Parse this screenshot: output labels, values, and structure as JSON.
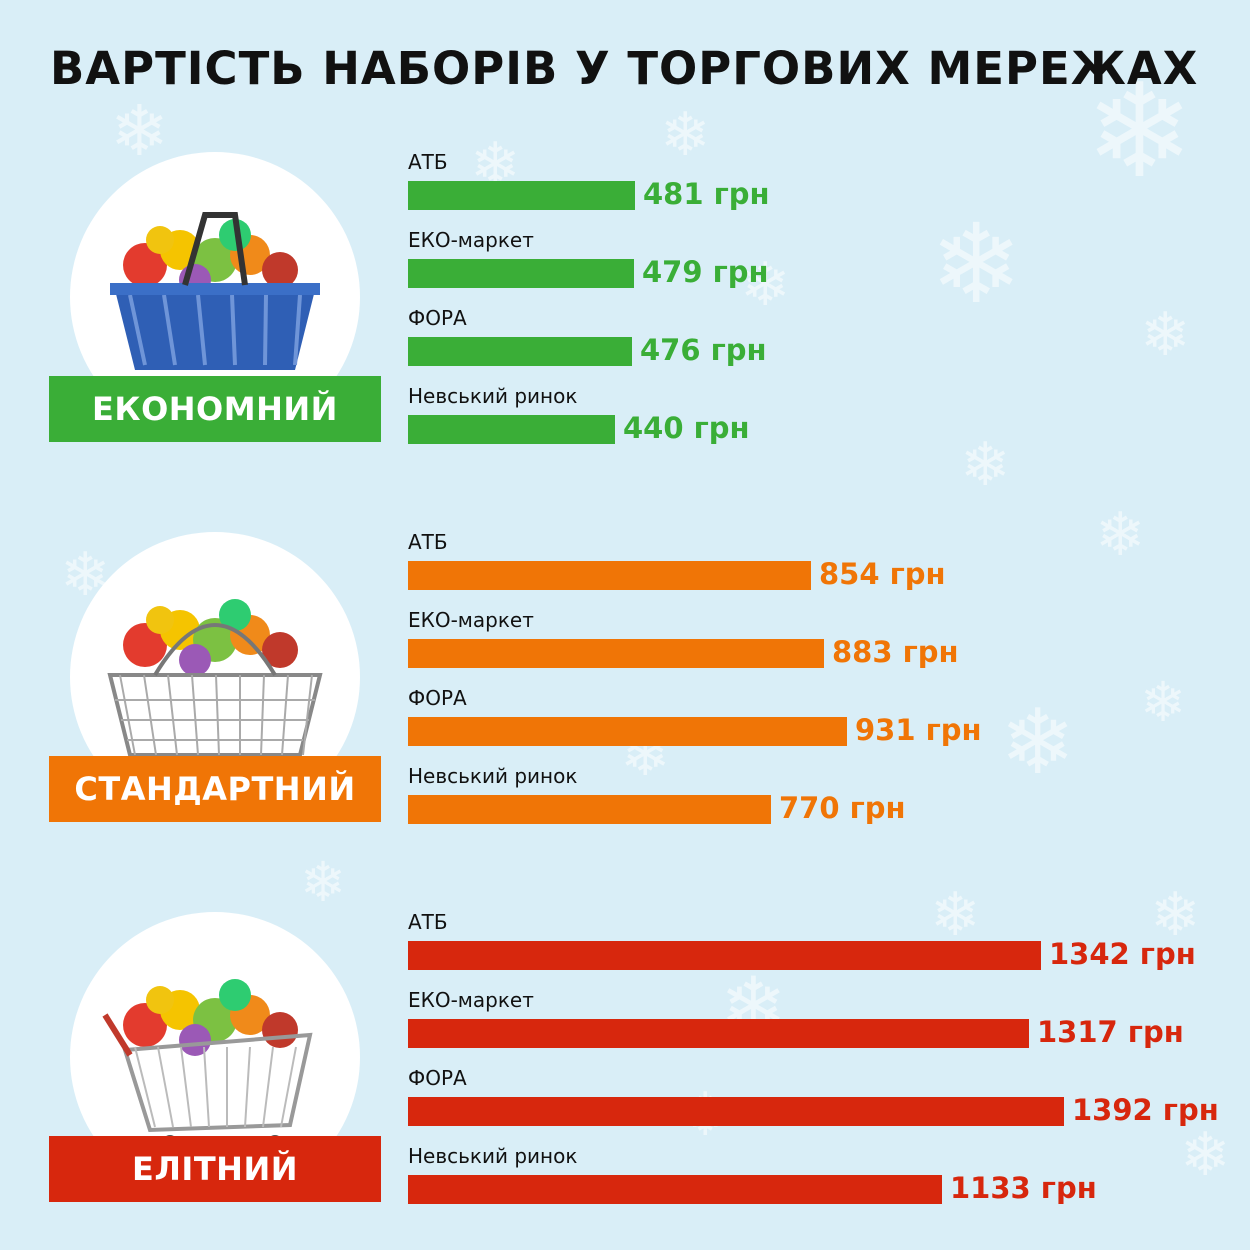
{
  "title": "ВАРТІСТЬ НАБОРІВ У ТОРГОВИХ МЕРЕЖАХ",
  "currency": "грн",
  "colors": {
    "background": "#d9eef7",
    "economy": "#3aae37",
    "standard": "#f07506",
    "elite": "#d7270d"
  },
  "chart_data": {
    "type": "bar",
    "orientation": "horizontal",
    "unit": "грн",
    "categories": [
      "АТБ",
      "ЕКО-маркет",
      "ФОРА",
      "Невський ринок"
    ],
    "groups": [
      {
        "name": "ЕКОНОМНИЙ",
        "color": "#3aae37",
        "icon": "shopping-basket-icon",
        "values": [
          481,
          479,
          476,
          440
        ]
      },
      {
        "name": "СТАНДАРТНИЙ",
        "color": "#f07506",
        "icon": "wire-basket-icon",
        "values": [
          854,
          883,
          931,
          770
        ]
      },
      {
        "name": "ЕЛІТНИЙ",
        "color": "#d7270d",
        "icon": "shopping-cart-icon",
        "values": [
          1342,
          1317,
          1392,
          1133
        ]
      }
    ]
  }
}
